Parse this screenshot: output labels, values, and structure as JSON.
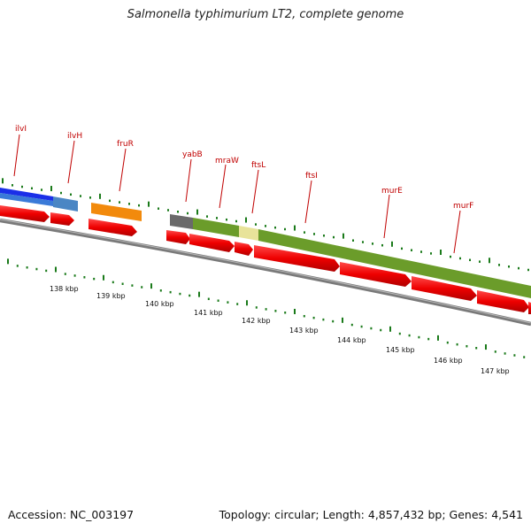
{
  "title": "Salmonella typhimurium LT2, complete genome",
  "footer": {
    "accession": "Accession: NC_003197",
    "summary": "Topology: circular; Length: 4,857,432 bp; Genes: 4,541"
  },
  "colors": {
    "background": "#ffffff",
    "gene_label": "#c00000",
    "orf_arrow": "#ee0000",
    "tick": "#1a7a1a",
    "backbone": "#7a7a7a"
  },
  "gene_labels": [
    "ilvI",
    "ilvH",
    "fruR",
    "yabB",
    "mraW",
    "ftsL",
    "ftsI",
    "murE",
    "murF"
  ],
  "kbp_labels": [
    "138 kbp",
    "139 kbp",
    "140 kbp",
    "141 kbp",
    "142 kbp",
    "143 kbp",
    "144 kbp",
    "145 kbp",
    "146 kbp",
    "147 kbp"
  ]
}
